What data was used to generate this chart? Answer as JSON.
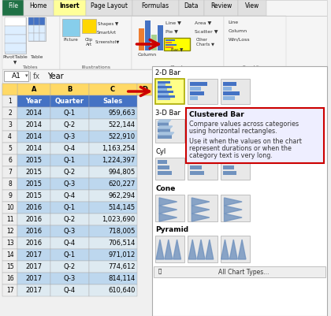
{
  "spreadsheet_data": {
    "headers": [
      "Year",
      "Quarter",
      "Sales"
    ],
    "rows": [
      [
        2014,
        "Q-1",
        "959,663"
      ],
      [
        2014,
        "Q-2",
        "522,144"
      ],
      [
        2014,
        "Q-3",
        "522,910"
      ],
      [
        2014,
        "Q-4",
        "1,163,254"
      ],
      [
        2015,
        "Q-1",
        "1,224,397"
      ],
      [
        2015,
        "Q-2",
        "994,805"
      ],
      [
        2015,
        "Q-3",
        "620,227"
      ],
      [
        2015,
        "Q-4",
        "962,294"
      ],
      [
        2016,
        "Q-1",
        "514,145"
      ],
      [
        2016,
        "Q-2",
        "1,023,690"
      ],
      [
        2016,
        "Q-3",
        "718,005"
      ],
      [
        2016,
        "Q-4",
        "706,514"
      ],
      [
        2017,
        "Q-1",
        "971,012"
      ],
      [
        2017,
        "Q-2",
        "774,612"
      ],
      [
        2017,
        "Q-3",
        "814,114"
      ],
      [
        2017,
        "Q-4",
        "610,640"
      ]
    ]
  },
  "ribbon_tabs": [
    "File",
    "Home",
    "Insert",
    "Page Layout",
    "Formulas",
    "Data",
    "Review",
    "View"
  ],
  "active_tab": "Insert",
  "formula_bar_value": "Year",
  "cell_ref": "A1",
  "header_bg": "#4472C4",
  "header_text": "#FFFFFF",
  "row_bg_1": "#BDD7EE",
  "row_bg_2": "#DEEAF1",
  "col_header_bg": "#FFD966",
  "grid_line_color": "#AAAAAA",
  "tooltip_title": "Clustered Bar",
  "tooltip_line1": "Compare values across categories",
  "tooltip_line2": "using horizontal rectangles.",
  "tooltip_line3": "Use it when the values on the chart",
  "tooltip_line4": "represent durations or when the",
  "tooltip_line5": "category text is very long.",
  "section_2d": "2-D Bar",
  "section_3d": "3-D Bar",
  "section_cyl": "Cyl",
  "section_cone": "Cone",
  "section_pyramid": "Pyramid",
  "all_chart_types": "All Chart Types...",
  "bg_color": "#F0F0F0",
  "dropdown_bg": "#FFFFFF",
  "ribbon_bg": "#F5F5F5",
  "tab_active_bg": "#FFFF99",
  "tab_inactive_bg": "#E0E0E0",
  "file_tab_bg": "#1F7145",
  "file_tab_fg": "#FFFFFF"
}
